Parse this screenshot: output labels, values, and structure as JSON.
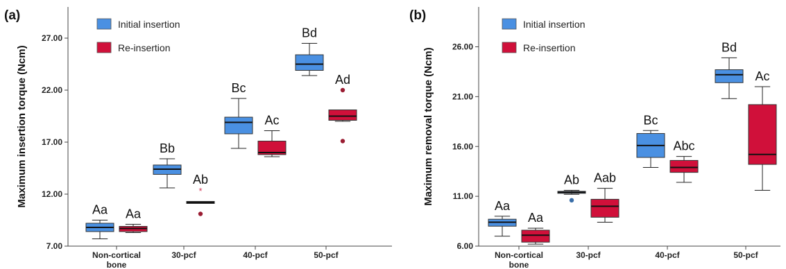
{
  "chart_data": [
    {
      "type": "boxplot",
      "panel_label": "(a)",
      "xlabel": "",
      "ylabel": "Maximum insertion torque (Ncm)",
      "ylim": [
        7.0,
        30.0
      ],
      "yticks": [
        "7.00",
        "12.00",
        "17.00",
        "22.00",
        "27.00"
      ],
      "ytick_values": [
        7,
        12,
        17,
        22,
        27
      ],
      "categories": [
        "Non-cortical bone",
        "30-pcf",
        "40-pcf",
        "50-pcf"
      ],
      "category_lines": [
        [
          "Non-cortical",
          "bone"
        ],
        [
          "30-pcf"
        ],
        [
          "40-pcf"
        ],
        [
          "50-pcf"
        ]
      ],
      "legend": {
        "position": "top-left"
      },
      "series": [
        {
          "name": "Initial insertion",
          "color": "#4a90e2",
          "boxes": [
            {
              "whisker_low": 7.7,
              "q1": 8.4,
              "median": 8.8,
              "q3": 9.2,
              "whisker_high": 9.5,
              "outliers": [],
              "extremes": [],
              "label": "Aa"
            },
            {
              "whisker_low": 12.6,
              "q1": 13.9,
              "median": 14.4,
              "q3": 14.8,
              "whisker_high": 15.4,
              "outliers": [],
              "extremes": [],
              "label": "Bb"
            },
            {
              "whisker_low": 16.4,
              "q1": 17.8,
              "median": 18.9,
              "q3": 19.4,
              "whisker_high": 21.2,
              "outliers": [],
              "extremes": [],
              "label": "Bc"
            },
            {
              "whisker_low": 23.4,
              "q1": 23.9,
              "median": 24.5,
              "q3": 25.4,
              "whisker_high": 26.5,
              "outliers": [],
              "extremes": [],
              "label": "Bd"
            }
          ]
        },
        {
          "name": "Re-insertion",
          "color": "#d0103a",
          "boxes": [
            {
              "whisker_low": 8.3,
              "q1": 8.4,
              "median": 8.7,
              "q3": 8.9,
              "whisker_high": 9.1,
              "outliers": [],
              "extremes": [],
              "label": "Aa"
            },
            {
              "whisker_low": 11.1,
              "q1": 11.1,
              "median": 11.2,
              "q3": 11.3,
              "whisker_high": 11.3,
              "outliers": [
                10.1
              ],
              "extremes": [
                12.4
              ],
              "label": "Ab"
            },
            {
              "whisker_low": 15.6,
              "q1": 15.8,
              "median": 16.0,
              "q3": 17.1,
              "whisker_high": 18.1,
              "outliers": [],
              "extremes": [],
              "label": "Ac"
            },
            {
              "whisker_low": 19.0,
              "q1": 19.1,
              "median": 19.5,
              "q3": 20.1,
              "whisker_high": 20.1,
              "outliers": [
                22.0,
                17.1
              ],
              "extremes": [],
              "label": "Ad"
            }
          ]
        }
      ]
    },
    {
      "type": "boxplot",
      "panel_label": "(b)",
      "xlabel": "",
      "ylabel": "Maximum removal torque (Ncm)",
      "ylim": [
        6.0,
        30.0
      ],
      "yticks": [
        "6.00",
        "11.00",
        "16.00",
        "21.00",
        "26.00"
      ],
      "ytick_values": [
        6,
        11,
        16,
        21,
        26
      ],
      "categories": [
        "Non-cortical bone",
        "30-pcf",
        "40-pcf",
        "50-pcf"
      ],
      "category_lines": [
        [
          "Non-cortical",
          "bone"
        ],
        [
          "30-pcf"
        ],
        [
          "40-pcf"
        ],
        [
          "50-pcf"
        ]
      ],
      "legend": {
        "position": "top-left"
      },
      "series": [
        {
          "name": "Initial insertion",
          "color": "#4a90e2",
          "boxes": [
            {
              "whisker_low": 7.0,
              "q1": 8.0,
              "median": 8.4,
              "q3": 8.7,
              "whisker_high": 9.0,
              "outliers": [],
              "extremes": [],
              "label": "Aa"
            },
            {
              "whisker_low": 11.2,
              "q1": 11.3,
              "median": 11.4,
              "q3": 11.5,
              "whisker_high": 11.6,
              "outliers": [
                10.6
              ],
              "extremes": [],
              "label": "Ab"
            },
            {
              "whisker_low": 13.9,
              "q1": 14.9,
              "median": 16.1,
              "q3": 17.3,
              "whisker_high": 17.6,
              "outliers": [],
              "extremes": [],
              "label": "Bc"
            },
            {
              "whisker_low": 20.8,
              "q1": 22.4,
              "median": 23.2,
              "q3": 23.7,
              "whisker_high": 24.9,
              "outliers": [],
              "extremes": [],
              "label": "Bd"
            }
          ]
        },
        {
          "name": "Re-insertion",
          "color": "#d0103a",
          "boxes": [
            {
              "whisker_low": 6.2,
              "q1": 6.4,
              "median": 7.1,
              "q3": 7.6,
              "whisker_high": 7.8,
              "outliers": [],
              "extremes": [],
              "label": "Aa"
            },
            {
              "whisker_low": 8.4,
              "q1": 8.9,
              "median": 10.0,
              "q3": 10.7,
              "whisker_high": 11.8,
              "outliers": [],
              "extremes": [],
              "label": "Aab"
            },
            {
              "whisker_low": 12.4,
              "q1": 13.4,
              "median": 13.9,
              "q3": 14.6,
              "whisker_high": 15.0,
              "outliers": [],
              "extremes": [],
              "label": "Abc"
            },
            {
              "whisker_low": 11.6,
              "q1": 14.2,
              "median": 15.2,
              "q3": 20.2,
              "whisker_high": 22.0,
              "outliers": [],
              "extremes": [],
              "label": "Ac"
            }
          ]
        }
      ]
    }
  ]
}
